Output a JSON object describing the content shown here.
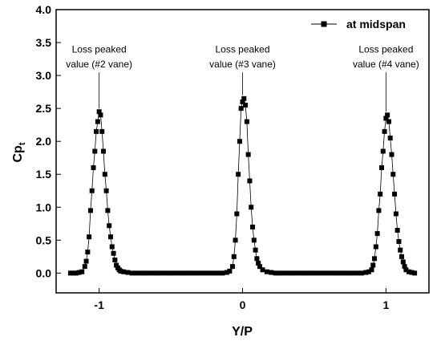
{
  "chart_data": {
    "type": "line",
    "title": "",
    "xlabel": "Y/P",
    "ylabel_main": "Cp",
    "ylabel_sub": "t",
    "xlim": [
      -1.3,
      1.3
    ],
    "ylim": [
      -0.3,
      4.0
    ],
    "xticks": [
      -1,
      0,
      1
    ],
    "xtick_labels": [
      "-1",
      "0",
      "1"
    ],
    "yticks": [
      0.0,
      0.5,
      1.0,
      1.5,
      2.0,
      2.5,
      3.0,
      3.5,
      4.0
    ],
    "ytick_labels": [
      "0.0",
      "0.5",
      "1.0",
      "1.5",
      "2.0",
      "2.5",
      "3.0",
      "3.5",
      "4.0"
    ],
    "grid": false,
    "legend_position": "top-right",
    "series": [
      {
        "name": "at midspan",
        "color": "#000000",
        "marker": "square",
        "x": [
          -1.2,
          -1.18,
          -1.16,
          -1.14,
          -1.12,
          -1.1,
          -1.09,
          -1.08,
          -1.07,
          -1.06,
          -1.05,
          -1.04,
          -1.03,
          -1.02,
          -1.01,
          -1.0,
          -0.99,
          -0.98,
          -0.97,
          -0.96,
          -0.95,
          -0.94,
          -0.93,
          -0.92,
          -0.91,
          -0.9,
          -0.89,
          -0.88,
          -0.87,
          -0.86,
          -0.85,
          -0.83,
          -0.8,
          -0.77,
          -0.74,
          -0.71,
          -0.68,
          -0.65,
          -0.62,
          -0.59,
          -0.56,
          -0.53,
          -0.5,
          -0.47,
          -0.44,
          -0.41,
          -0.38,
          -0.35,
          -0.32,
          -0.29,
          -0.26,
          -0.23,
          -0.2,
          -0.17,
          -0.14,
          -0.11,
          -0.09,
          -0.07,
          -0.06,
          -0.05,
          -0.04,
          -0.03,
          -0.02,
          -0.01,
          0.0,
          0.01,
          0.02,
          0.03,
          0.04,
          0.05,
          0.06,
          0.07,
          0.08,
          0.09,
          0.1,
          0.11,
          0.12,
          0.14,
          0.17,
          0.2,
          0.23,
          0.26,
          0.29,
          0.32,
          0.35,
          0.38,
          0.41,
          0.44,
          0.47,
          0.5,
          0.53,
          0.56,
          0.59,
          0.62,
          0.65,
          0.68,
          0.71,
          0.74,
          0.77,
          0.8,
          0.83,
          0.86,
          0.88,
          0.9,
          0.91,
          0.92,
          0.93,
          0.94,
          0.95,
          0.96,
          0.97,
          0.98,
          0.99,
          1.0,
          1.01,
          1.02,
          1.03,
          1.04,
          1.05,
          1.06,
          1.07,
          1.08,
          1.09,
          1.1,
          1.11,
          1.12,
          1.13,
          1.14,
          1.16,
          1.18,
          1.2
        ],
        "y": [
          0.0,
          0.0,
          0.0,
          0.01,
          0.02,
          0.1,
          0.18,
          0.32,
          0.55,
          0.95,
          1.25,
          1.6,
          1.85,
          2.15,
          2.3,
          2.45,
          2.4,
          2.15,
          1.85,
          1.5,
          1.25,
          0.95,
          0.72,
          0.55,
          0.4,
          0.3,
          0.2,
          0.12,
          0.08,
          0.05,
          0.03,
          0.02,
          0.01,
          0.0,
          0.0,
          0.0,
          0.0,
          0.0,
          0.0,
          0.0,
          0.0,
          0.0,
          0.0,
          0.0,
          0.0,
          0.0,
          0.0,
          0.0,
          0.0,
          0.0,
          0.0,
          0.0,
          0.0,
          0.0,
          0.0,
          0.01,
          0.03,
          0.1,
          0.25,
          0.5,
          0.9,
          1.5,
          2.0,
          2.5,
          2.6,
          2.65,
          2.55,
          2.3,
          1.8,
          1.4,
          1.0,
          0.7,
          0.5,
          0.35,
          0.22,
          0.15,
          0.1,
          0.05,
          0.02,
          0.01,
          0.0,
          0.0,
          0.0,
          0.0,
          0.0,
          0.0,
          0.0,
          0.0,
          0.0,
          0.0,
          0.0,
          0.0,
          0.0,
          0.0,
          0.0,
          0.0,
          0.0,
          0.0,
          0.0,
          0.0,
          0.0,
          0.01,
          0.02,
          0.05,
          0.12,
          0.22,
          0.4,
          0.6,
          0.95,
          1.2,
          1.6,
          1.85,
          2.15,
          2.35,
          2.4,
          2.3,
          2.05,
          1.8,
          1.5,
          1.2,
          0.9,
          0.65,
          0.48,
          0.35,
          0.25,
          0.17,
          0.1,
          0.05,
          0.02,
          0.01,
          0.0
        ]
      }
    ],
    "annotations": [
      {
        "line1": "Loss peaked",
        "line2": "value (#2 vane)",
        "anchor_x": -1.0,
        "anchor_y": 2.45
      },
      {
        "line1": "Loss peaked",
        "line2": "value (#3 vane)",
        "anchor_x": 0.0,
        "anchor_y": 2.65
      },
      {
        "line1": "Loss peaked",
        "line2": "value (#4 vane)",
        "anchor_x": 1.0,
        "anchor_y": 2.4
      }
    ]
  }
}
